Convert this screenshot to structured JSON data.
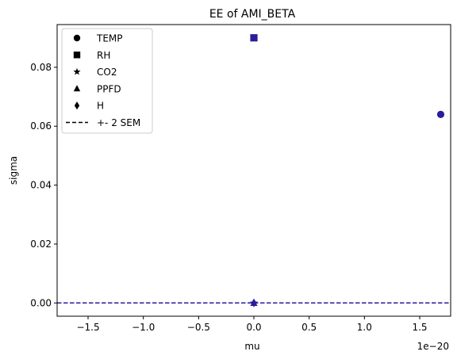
{
  "chart_data": {
    "type": "scatter",
    "title": "EE of AMI_BETA",
    "xlabel": "mu",
    "ylabel": "sigma",
    "x_offset_label": "1e−20",
    "x_scale_exponent": -20,
    "xlim": [
      -1.78e-20,
      1.78e-20
    ],
    "ylim": [
      -0.0045,
      0.0945
    ],
    "xticks": [
      -1.5e-20,
      -1e-20,
      -5e-21,
      0,
      5e-21,
      1e-20,
      1.5e-20
    ],
    "xtick_labels": [
      "−1.5",
      "−1.0",
      "−0.5",
      "0.0",
      "0.5",
      "1.0",
      "1.5"
    ],
    "yticks": [
      0.0,
      0.02,
      0.04,
      0.06,
      0.08
    ],
    "ytick_labels": [
      "0.00",
      "0.02",
      "0.04",
      "0.06",
      "0.08"
    ],
    "grid": false,
    "legend_position": "top-left",
    "point_color": "#2a1d9a",
    "points": [
      {
        "name": "TEMP",
        "marker": "circle",
        "x": 1.69e-20,
        "y": 0.064
      },
      {
        "name": "RH",
        "marker": "square",
        "x": 0.0,
        "y": 0.09
      },
      {
        "name": "CO2",
        "marker": "star",
        "x": 0.0,
        "y": 0.0
      },
      {
        "name": "PPFD",
        "marker": "triangle",
        "x": 0.0,
        "y": 0.0
      },
      {
        "name": "H",
        "marker": "diamond",
        "x": 0.0,
        "y": 0.0
      }
    ],
    "sem_lines": {
      "label": "+- 2 SEM",
      "style": "dashed",
      "colors": [
        "#000000",
        "#2a1d9a"
      ],
      "slope": 0,
      "value": 0
    },
    "legend": [
      {
        "label": "TEMP",
        "marker": "circle"
      },
      {
        "label": "RH",
        "marker": "square"
      },
      {
        "label": "CO2",
        "marker": "star"
      },
      {
        "label": "PPFD",
        "marker": "triangle"
      },
      {
        "label": "H",
        "marker": "diamond"
      },
      {
        "label": "+- 2 SEM",
        "marker": "dashed-line"
      }
    ]
  }
}
